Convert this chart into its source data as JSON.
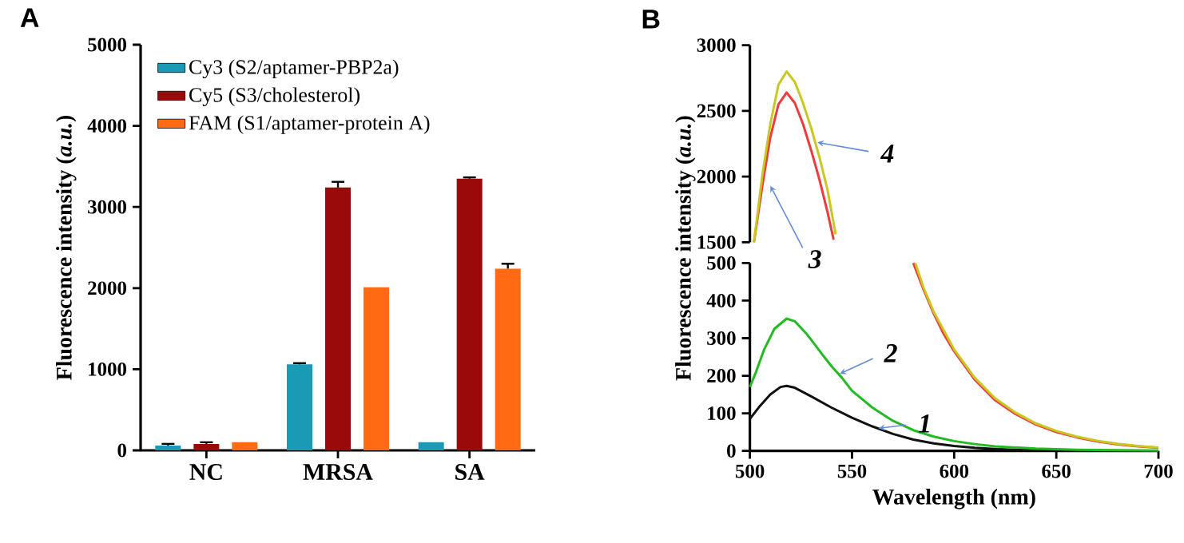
{
  "chart_data": [
    {
      "type": "bar",
      "title": "A",
      "ylabel": "Fluorescence intensity (*a.u.*)",
      "categories": [
        "NC",
        "MRSA",
        "SA"
      ],
      "ylim": [
        0,
        5000
      ],
      "yticks": [
        0,
        1000,
        2000,
        3000,
        4000,
        5000
      ],
      "legend": "top left",
      "series": [
        {
          "name": "Cy3 (S2/aptamer-PBP2a)",
          "color": "#1a9bb5",
          "values": [
            60,
            1060,
            100
          ],
          "errors": [
            20,
            15,
            null
          ]
        },
        {
          "name": "Cy5 (S3/cholesterol)",
          "color": "#9b0a0a",
          "values": [
            80,
            3240,
            3350
          ],
          "errors": [
            20,
            70,
            15
          ]
        },
        {
          "name": "FAM (S1/aptamer-protein A)",
          "color": "#ff6a13",
          "values": [
            100,
            2010,
            2240
          ],
          "errors": [
            null,
            null,
            60
          ]
        }
      ]
    },
    {
      "type": "line",
      "title": "B",
      "xlim": [
        500,
        700
      ],
      "ylim": [
        1500,
        3000
      ],
      "yticks": [
        1500,
        2000,
        2500,
        3000
      ],
      "tick_labels": "y",
      "annotations": [
        {
          "text": "3",
          "x": 510,
          "y": 1930
        },
        {
          "text": "4",
          "x": 533,
          "y": 2260
        }
      ],
      "series": [
        {
          "color": "#ee3b3b",
          "x": [
            502,
            506,
            510,
            514,
            518,
            522,
            526,
            530,
            534,
            538,
            541
          ],
          "values": [
            1500,
            1920,
            2300,
            2550,
            2640,
            2560,
            2400,
            2200,
            1980,
            1730,
            1520
          ]
        },
        {
          "color": "#c8c820",
          "x": [
            502,
            506,
            510,
            514,
            518,
            522,
            526,
            530,
            534,
            538,
            542
          ],
          "values": [
            1500,
            2000,
            2400,
            2700,
            2800,
            2720,
            2560,
            2370,
            2150,
            1900,
            1560
          ]
        }
      ]
    },
    {
      "type": "line",
      "xlabel": "Wavelength (nm)",
      "ylabel": "Fluorescence intensity (*a.u.*)",
      "xlim": [
        500,
        700
      ],
      "xticks": [
        500,
        550,
        600,
        650,
        700
      ],
      "ylim": [
        0,
        500
      ],
      "yticks": [
        0,
        100,
        200,
        300,
        400,
        500
      ],
      "annotations": [
        {
          "text": "1",
          "x": 563,
          "y": 60
        },
        {
          "text": "2",
          "x": 544,
          "y": 205
        }
      ],
      "series": [
        {
          "color": "#111111",
          "x": [
            500,
            505,
            510,
            515,
            518,
            522,
            530,
            540,
            550,
            560,
            570,
            580,
            590,
            600,
            610,
            620,
            630,
            640,
            660,
            700
          ],
          "values": [
            85,
            120,
            150,
            170,
            173,
            168,
            145,
            115,
            88,
            65,
            45,
            30,
            20,
            13,
            8,
            5,
            3,
            2,
            1,
            0
          ]
        },
        {
          "color": "#22bb22",
          "x": [
            500,
            503,
            507,
            512,
            518,
            522,
            528,
            535,
            540,
            545,
            550,
            560,
            570,
            580,
            590,
            600,
            610,
            620,
            640,
            660,
            700
          ],
          "values": [
            170,
            210,
            270,
            325,
            352,
            345,
            310,
            260,
            225,
            195,
            160,
            115,
            80,
            55,
            38,
            26,
            18,
            12,
            6,
            3,
            1
          ]
        },
        {
          "color": "#ee3b3b",
          "x": [
            580,
            585,
            590,
            595,
            600,
            610,
            620,
            630,
            640,
            650,
            660,
            670,
            680,
            690,
            700
          ],
          "values": [
            500,
            430,
            365,
            310,
            265,
            190,
            135,
            98,
            70,
            50,
            36,
            25,
            17,
            12,
            8
          ]
        },
        {
          "color": "#c8c820",
          "x": [
            581,
            585,
            590,
            600,
            610,
            620,
            630,
            640,
            650,
            660,
            670,
            680,
            690,
            700
          ],
          "values": [
            500,
            435,
            370,
            270,
            195,
            140,
            102,
            73,
            53,
            38,
            27,
            19,
            13,
            9
          ]
        }
      ]
    }
  ]
}
